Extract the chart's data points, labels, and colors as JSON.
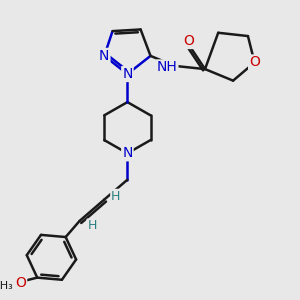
{
  "bg_color": "#e8e8e8",
  "bond_color": "#1a1a1a",
  "nitrogen_color": "#0000cc",
  "oxygen_color": "#cc0000",
  "h_color": "#2a8080",
  "line_width": 1.8,
  "font_size": 9,
  "xlim": [
    0,
    10
  ],
  "ylim": [
    0,
    10
  ]
}
